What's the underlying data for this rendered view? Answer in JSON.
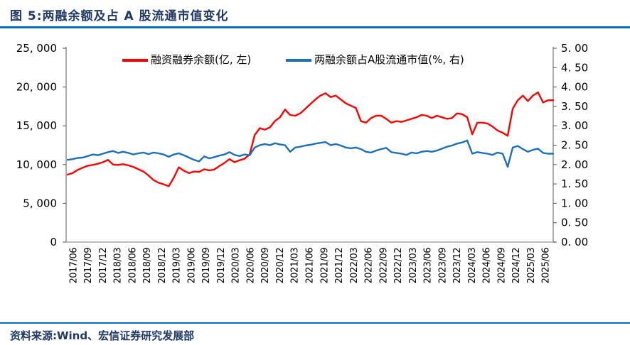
{
  "figure": {
    "title": "图 5:两融余额及占 A 股流通市值变化",
    "source": "资料来源:Wind、宏信证券研究发展部",
    "accent_rule_color": "#0070C0",
    "title_color": "#1F3864"
  },
  "chart_data": {
    "type": "line",
    "title": "两融余额及占A股流通市值变化",
    "x_start": "2017/06",
    "x_end": "2025/06",
    "x_frequency": "monthly",
    "x_tick_labels": [
      "2017/06",
      "2017/09",
      "2017/12",
      "2018/03",
      "2018/06",
      "2018/09",
      "2018/12",
      "2019/03",
      "2019/06",
      "2019/09",
      "2019/12",
      "2020/03",
      "2020/06",
      "2020/09",
      "2020/12",
      "2021/03",
      "2021/06",
      "2021/09",
      "2021/12",
      "2022/03",
      "2022/06",
      "2022/09",
      "2022/12",
      "2023/03",
      "2023/06",
      "2023/09",
      "2023/12",
      "2024/03",
      "2024/06",
      "2024/09",
      "2024/12",
      "2025/03",
      "2025/06"
    ],
    "left_axis": {
      "min": 0,
      "max": 25000,
      "step": 5000,
      "tick_labels": [
        "25, 000",
        "20, 000",
        "15, 000",
        "10, 000",
        "5, 000",
        "0"
      ]
    },
    "right_axis": {
      "min": 0,
      "max": 5,
      "step": 0.5,
      "tick_labels": [
        "5. 00",
        "4. 50",
        "4. 00",
        "3. 50",
        "3. 00",
        "2. 50",
        "2. 00",
        "1. 50",
        "1. 00",
        "0. 50",
        "0. 00"
      ]
    },
    "grid": "off",
    "legend_position": "top",
    "axis_line_color": "#595959",
    "baseline_color": "#A6A6A6",
    "series": [
      {
        "name": "融资融券余额(亿, 左)",
        "axis": "left",
        "color": "#FF0000",
        "values": [
          8700,
          8900,
          9300,
          9600,
          9850,
          9950,
          10100,
          10300,
          10600,
          10000,
          9950,
          10050,
          9900,
          9700,
          9400,
          9100,
          8600,
          8000,
          7650,
          7450,
          7200,
          8300,
          9650,
          9200,
          8900,
          9100,
          9050,
          9400,
          9250,
          9350,
          9800,
          10200,
          10700,
          10300,
          10550,
          10750,
          11300,
          13800,
          14700,
          14500,
          14800,
          15600,
          16100,
          17100,
          16400,
          16300,
          16600,
          17200,
          17800,
          18400,
          18900,
          19200,
          18700,
          18900,
          18400,
          17900,
          17600,
          17300,
          15600,
          15400,
          16000,
          16300,
          16300,
          15900,
          15400,
          15600,
          15500,
          15700,
          15900,
          16100,
          16400,
          16300,
          16000,
          16300,
          16100,
          15900,
          16000,
          16600,
          16500,
          16100,
          13900,
          15400,
          15400,
          15300,
          14900,
          14400,
          14100,
          13700,
          17200,
          18300,
          18900,
          18200,
          18900,
          19300,
          18000,
          18300,
          18300
        ]
      },
      {
        "name": "两融余额占A股流通市值(%, 右)",
        "axis": "right",
        "color": "#1D6FB8",
        "values": [
          2.12,
          2.14,
          2.17,
          2.18,
          2.22,
          2.26,
          2.24,
          2.28,
          2.32,
          2.35,
          2.3,
          2.33,
          2.3,
          2.26,
          2.29,
          2.31,
          2.27,
          2.31,
          2.29,
          2.26,
          2.2,
          2.26,
          2.29,
          2.24,
          2.18,
          2.12,
          2.08,
          2.21,
          2.16,
          2.19,
          2.23,
          2.26,
          2.32,
          2.25,
          2.22,
          2.26,
          2.24,
          2.44,
          2.5,
          2.53,
          2.5,
          2.55,
          2.52,
          2.5,
          2.33,
          2.44,
          2.46,
          2.49,
          2.51,
          2.54,
          2.56,
          2.58,
          2.5,
          2.53,
          2.49,
          2.44,
          2.42,
          2.44,
          2.4,
          2.33,
          2.31,
          2.36,
          2.4,
          2.43,
          2.32,
          2.3,
          2.28,
          2.25,
          2.31,
          2.29,
          2.33,
          2.35,
          2.33,
          2.36,
          2.41,
          2.46,
          2.49,
          2.54,
          2.57,
          2.62,
          2.28,
          2.32,
          2.3,
          2.28,
          2.25,
          2.31,
          2.28,
          1.94,
          2.44,
          2.48,
          2.4,
          2.33,
          2.38,
          2.41,
          2.3,
          2.28,
          2.28
        ]
      }
    ]
  }
}
